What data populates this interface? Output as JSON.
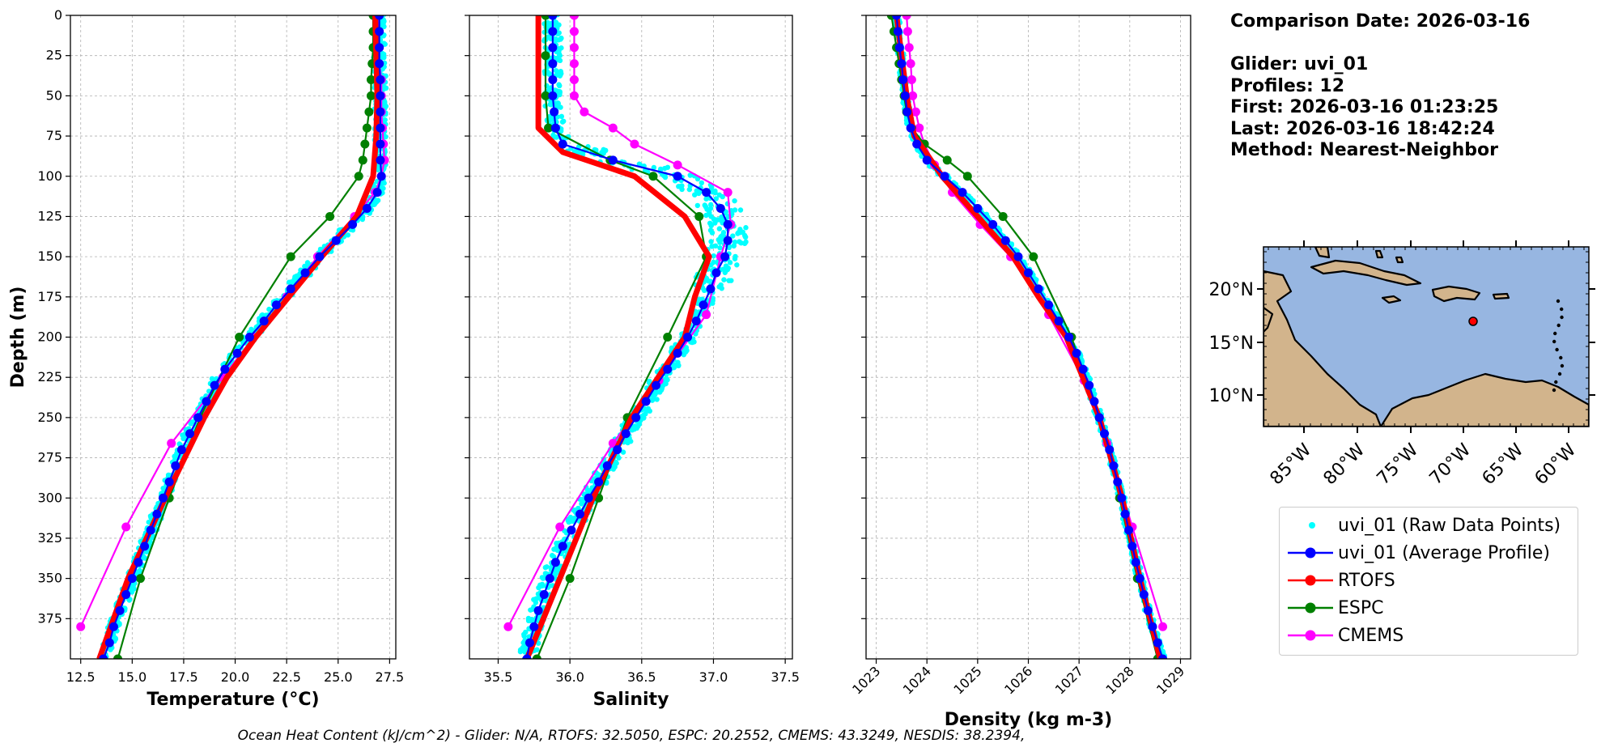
{
  "info": {
    "comparison_date": "Comparison Date: 2026-03-16",
    "glider": "Glider: uvi_01",
    "profiles": "Profiles: 12",
    "first": "First: 2026-03-16 01:23:25",
    "last": "Last: 2026-03-16 18:42:24",
    "method": "Method: Nearest-Neighbor"
  },
  "footer": "Ocean Heat Content (kJ/cm^2) - Glider: N/A,  RTOFS: 32.5050,  ESPC: 20.2552,  CMEMS: 43.3249,  NESDIS: 38.2394,",
  "legend": [
    {
      "label": "uvi_01 (Raw Data Points)",
      "color": "#00ffff",
      "style": "dot"
    },
    {
      "label": "uvi_01 (Average Profile)",
      "color": "#0000ff",
      "style": "line-marker"
    },
    {
      "label": "RTOFS",
      "color": "#ff0000",
      "style": "line-marker"
    },
    {
      "label": "ESPC",
      "color": "#008000",
      "style": "line-marker"
    },
    {
      "label": "CMEMS",
      "color": "#ff00ff",
      "style": "line-marker"
    }
  ],
  "chart_data": [
    {
      "type": "line",
      "xlabel": "Temperature (°C)",
      "ylabel": "Depth (m)",
      "xlim": [
        12.0,
        27.8
      ],
      "ylim": [
        400,
        0
      ],
      "xticks": [
        12.5,
        15.0,
        17.5,
        20.0,
        22.5,
        25.0,
        27.5
      ],
      "xtick_labels": [
        "12.5",
        "15.0",
        "17.5",
        "20.0",
        "22.5",
        "25.0",
        "27.5"
      ],
      "yticks": [
        0,
        25,
        50,
        75,
        100,
        125,
        150,
        175,
        200,
        225,
        250,
        275,
        300,
        325,
        350,
        375
      ],
      "grid": true,
      "series": [
        {
          "name": "uvi_01 (Average Profile)",
          "color": "#0000ff",
          "y": [
            0,
            10,
            20,
            30,
            40,
            50,
            60,
            70,
            80,
            90,
            100,
            110,
            120,
            130,
            140,
            150,
            160,
            170,
            180,
            190,
            200,
            210,
            220,
            230,
            240,
            250,
            260,
            270,
            280,
            290,
            300,
            310,
            320,
            330,
            340,
            350,
            360,
            370,
            380,
            390,
            400
          ],
          "x": [
            27.0,
            27.0,
            27.0,
            27.0,
            27.05,
            27.05,
            27.05,
            27.05,
            27.05,
            27.05,
            27.1,
            26.9,
            26.4,
            25.7,
            24.9,
            24.1,
            23.4,
            22.7,
            22.0,
            21.4,
            20.7,
            20.1,
            19.5,
            19.0,
            18.6,
            18.2,
            17.8,
            17.4,
            17.1,
            16.8,
            16.5,
            16.2,
            15.9,
            15.6,
            15.3,
            15.0,
            14.7,
            14.4,
            14.1,
            13.9,
            13.6
          ]
        },
        {
          "name": "RTOFS",
          "color": "#ff0000",
          "y": [
            0,
            50,
            75,
            100,
            125,
            150,
            200,
            225,
            250,
            300,
            350,
            400
          ],
          "x": [
            26.8,
            26.9,
            26.85,
            26.7,
            25.9,
            24.2,
            21.0,
            19.6,
            18.5,
            16.6,
            14.8,
            13.4
          ]
        },
        {
          "name": "ESPC",
          "color": "#008000",
          "y": [
            0,
            10,
            20,
            30,
            40,
            50,
            60,
            70,
            80,
            90,
            100,
            125,
            150,
            200,
            250,
            300,
            350,
            400
          ],
          "x": [
            26.7,
            26.7,
            26.7,
            26.65,
            26.6,
            26.6,
            26.5,
            26.4,
            26.3,
            26.2,
            26.0,
            24.6,
            22.7,
            20.2,
            18.3,
            16.8,
            15.4,
            14.3
          ]
        },
        {
          "name": "CMEMS",
          "color": "#ff00ff",
          "y": [
            0,
            10,
            20,
            30,
            40,
            50,
            60,
            70,
            80,
            90,
            100,
            110,
            125,
            150,
            175,
            200,
            225,
            266,
            318,
            380
          ],
          "x": [
            26.9,
            26.95,
            27.0,
            27.0,
            27.1,
            27.1,
            27.1,
            27.15,
            27.2,
            27.25,
            27.1,
            26.8,
            25.8,
            24.0,
            22.5,
            20.9,
            19.4,
            16.9,
            14.7,
            12.5
          ]
        }
      ]
    },
    {
      "type": "line",
      "xlabel": "Salinity",
      "xlim": [
        35.3,
        37.55
      ],
      "ylim": [
        400,
        0
      ],
      "xticks": [
        35.5,
        36.0,
        36.5,
        37.0,
        37.5
      ],
      "xtick_labels": [
        "35.5",
        "36.0",
        "36.5",
        "37.0",
        "37.5"
      ],
      "yticks": [
        0,
        25,
        50,
        75,
        100,
        125,
        150,
        175,
        200,
        225,
        250,
        275,
        300,
        325,
        350,
        375
      ],
      "grid": true,
      "series": [
        {
          "name": "uvi_01 (Average Profile)",
          "color": "#0000ff",
          "y": [
            0,
            10,
            20,
            30,
            40,
            50,
            60,
            70,
            80,
            90,
            100,
            110,
            120,
            130,
            140,
            150,
            160,
            170,
            180,
            190,
            200,
            210,
            220,
            230,
            240,
            250,
            260,
            270,
            280,
            290,
            300,
            310,
            320,
            330,
            340,
            350,
            360,
            370,
            380,
            390,
            400
          ],
          "x": [
            35.88,
            35.88,
            35.88,
            35.88,
            35.88,
            35.88,
            35.89,
            35.9,
            35.95,
            36.3,
            36.75,
            36.95,
            37.05,
            37.1,
            37.1,
            37.08,
            37.02,
            36.98,
            36.93,
            36.88,
            36.82,
            36.75,
            36.68,
            36.6,
            36.53,
            36.46,
            36.39,
            36.33,
            36.26,
            36.2,
            36.13,
            36.07,
            36.01,
            35.95,
            35.9,
            35.86,
            35.82,
            35.78,
            35.75,
            35.72,
            35.7
          ]
        },
        {
          "name": "RTOFS",
          "color": "#ff0000",
          "y": [
            0,
            50,
            70,
            85,
            100,
            125,
            150,
            175,
            200,
            250,
            300,
            350,
            400
          ],
          "x": [
            35.78,
            35.78,
            35.78,
            35.95,
            36.45,
            36.8,
            36.97,
            36.87,
            36.8,
            36.43,
            36.16,
            35.93,
            35.7
          ]
        },
        {
          "name": "ESPC",
          "color": "#008000",
          "y": [
            0,
            25,
            50,
            70,
            90,
            100,
            125,
            150,
            200,
            250,
            300,
            350,
            400
          ],
          "x": [
            35.83,
            35.83,
            35.83,
            35.85,
            36.28,
            36.58,
            36.9,
            36.95,
            36.68,
            36.4,
            36.2,
            36.0,
            35.77
          ]
        },
        {
          "name": "CMEMS",
          "color": "#ff00ff",
          "y": [
            0,
            10,
            20,
            30,
            40,
            50,
            60,
            70,
            80,
            93,
            110,
            130,
            150,
            186,
            227,
            266,
            318,
            380
          ],
          "x": [
            36.03,
            36.03,
            36.03,
            36.03,
            36.03,
            36.03,
            36.1,
            36.3,
            36.45,
            36.75,
            37.1,
            37.12,
            37.05,
            36.95,
            36.62,
            36.3,
            35.93,
            35.57
          ]
        }
      ]
    },
    {
      "type": "line",
      "xlabel": "Density (kg m-3)",
      "xlim": [
        1022.8,
        1029.2
      ],
      "ylim": [
        400,
        0
      ],
      "xticks": [
        1023,
        1024,
        1025,
        1026,
        1027,
        1028,
        1029
      ],
      "xtick_labels": [
        "1023",
        "1024",
        "1025",
        "1026",
        "1027",
        "1028",
        "1029"
      ],
      "yticks": [
        0,
        25,
        50,
        75,
        100,
        125,
        150,
        175,
        200,
        225,
        250,
        275,
        300,
        325,
        350,
        375
      ],
      "grid": true,
      "series": [
        {
          "name": "uvi_01 (Average Profile)",
          "color": "#0000ff",
          "y": [
            0,
            10,
            20,
            30,
            40,
            50,
            60,
            70,
            80,
            90,
            100,
            110,
            120,
            130,
            140,
            150,
            160,
            170,
            180,
            190,
            200,
            210,
            220,
            230,
            240,
            250,
            260,
            270,
            280,
            290,
            300,
            310,
            320,
            330,
            340,
            350,
            360,
            370,
            380,
            390,
            400
          ],
          "x": [
            1023.4,
            1023.43,
            1023.46,
            1023.5,
            1023.53,
            1023.57,
            1023.61,
            1023.68,
            1023.8,
            1024.0,
            1024.35,
            1024.7,
            1025.0,
            1025.3,
            1025.55,
            1025.8,
            1026.0,
            1026.2,
            1026.4,
            1026.6,
            1026.8,
            1026.95,
            1027.08,
            1027.2,
            1027.3,
            1027.4,
            1027.5,
            1027.6,
            1027.68,
            1027.76,
            1027.84,
            1027.91,
            1027.98,
            1028.05,
            1028.12,
            1028.2,
            1028.28,
            1028.36,
            1028.45,
            1028.55,
            1028.65
          ]
        },
        {
          "name": "RTOFS",
          "color": "#ff0000",
          "y": [
            0,
            50,
            75,
            100,
            125,
            150,
            175,
            200,
            250,
            300,
            350,
            400
          ],
          "x": [
            1023.4,
            1023.6,
            1023.75,
            1024.3,
            1025.0,
            1025.7,
            1026.2,
            1026.75,
            1027.4,
            1027.85,
            1028.2,
            1028.6
          ]
        },
        {
          "name": "ESPC",
          "color": "#008000",
          "y": [
            0,
            10,
            20,
            30,
            40,
            50,
            60,
            70,
            80,
            90,
            100,
            125,
            150,
            200,
            250,
            300,
            350,
            400
          ],
          "x": [
            1023.3,
            1023.35,
            1023.4,
            1023.45,
            1023.5,
            1023.55,
            1023.6,
            1023.7,
            1023.95,
            1024.4,
            1024.8,
            1025.5,
            1026.1,
            1026.85,
            1027.4,
            1027.8,
            1028.15,
            1028.55
          ]
        },
        {
          "name": "CMEMS",
          "color": "#ff00ff",
          "y": [
            0,
            10,
            20,
            30,
            40,
            50,
            60,
            70,
            80,
            93,
            110,
            130,
            150,
            186,
            227,
            266,
            318,
            380
          ],
          "x": [
            1023.6,
            1023.62,
            1023.65,
            1023.68,
            1023.7,
            1023.72,
            1023.78,
            1023.85,
            1023.95,
            1024.15,
            1024.5,
            1025.05,
            1025.65,
            1026.4,
            1027.1,
            1027.55,
            1028.05,
            1028.65
          ]
        }
      ]
    }
  ],
  "raw_points": {
    "label": "uvi_01 (Raw Data Points)",
    "color": "#00ffff"
  },
  "map": {
    "yticks": [
      "20°N",
      "15°N",
      "10°N"
    ],
    "xticks": [
      "85°W",
      "80°W",
      "75°W",
      "70°W",
      "65°W",
      "60°W"
    ],
    "ocean_color": "#97b6e1",
    "land_color": "#d2b48c",
    "marker_color": "#ff0000"
  }
}
